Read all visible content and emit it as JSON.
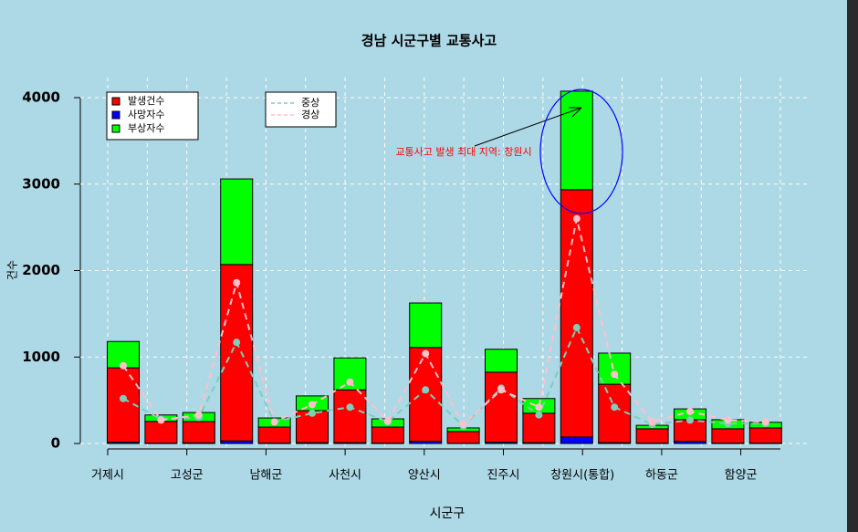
{
  "chart_data": {
    "type": "bar",
    "title": "경남 시군구별 교통사고",
    "x_label": "시군구",
    "y_label": "건수",
    "categories": [
      "거제시",
      null,
      "고성군",
      null,
      "남해군",
      null,
      "사천시",
      null,
      "양산시",
      null,
      "진주시",
      null,
      "창원시(통합)",
      null,
      "하동군",
      null,
      "함양군",
      null
    ],
    "series": [
      {
        "name": "사망자수",
        "color": "#0000ff",
        "values": [
          15,
          5,
          8,
          30,
          5,
          10,
          10,
          5,
          25,
          3,
          15,
          10,
          75,
          10,
          5,
          25,
          5,
          5
        ]
      },
      {
        "name": "발생건수",
        "color": "#ff0000",
        "values": [
          860,
          250,
          245,
          2040,
          185,
          370,
          610,
          185,
          1085,
          135,
          810,
          340,
          2860,
          675,
          165,
          250,
          165,
          175
        ]
      },
      {
        "name": "부상자수",
        "color": "#00ff00",
        "values": [
          305,
          75,
          105,
          990,
          105,
          170,
          370,
          95,
          515,
          42,
          265,
          170,
          1140,
          360,
          40,
          125,
          105,
          65
        ]
      },
      {
        "name": "중상",
        "color": "#7fcdbb",
        "type": "line",
        "values": [
          520,
          280,
          300,
          1170,
          250,
          350,
          420,
          250,
          620,
          200,
          640,
          330,
          1340,
          420,
          220,
          270,
          230,
          230
        ]
      },
      {
        "name": "경상",
        "color": "#ffc0cb",
        "type": "line",
        "values": [
          900,
          270,
          330,
          1860,
          250,
          450,
          710,
          260,
          1040,
          220,
          620,
          420,
          2600,
          800,
          250,
          370,
          270,
          250
        ]
      }
    ],
    "legend_order": [
      1,
      0,
      2
    ],
    "ylim": [
      0,
      4000
    ],
    "yticks": [
      0,
      1000,
      2000,
      3000,
      4000
    ],
    "grid": true,
    "annotation": "교통사고 발생 최대 지역: 창원시"
  }
}
